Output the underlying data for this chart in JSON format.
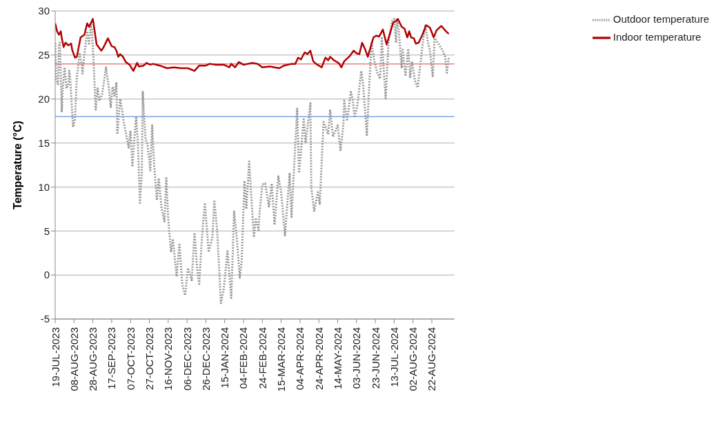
{
  "chart_data": {
    "type": "line",
    "ylabel": "Temperature (°C)",
    "ylim": [
      -5,
      30
    ],
    "yticks": [
      -5,
      0,
      5,
      10,
      15,
      20,
      25,
      30
    ],
    "xlim": [
      "2023-07-19",
      "2024-09-15"
    ],
    "xticks": [
      {
        "value": "2023-07-19",
        "label": "19-JUL-2023"
      },
      {
        "value": "2023-08-08",
        "label": "08-AUG-2023"
      },
      {
        "value": "2023-08-28",
        "label": "28-AUG-2023"
      },
      {
        "value": "2023-09-17",
        "label": "17-SEP-2023"
      },
      {
        "value": "2023-10-07",
        "label": "07-OCT-2023"
      },
      {
        "value": "2023-10-27",
        "label": "27-OCT-2023"
      },
      {
        "value": "2023-11-16",
        "label": "16-NOV-2023"
      },
      {
        "value": "2023-12-06",
        "label": "06-DEC-2023"
      },
      {
        "value": "2023-12-26",
        "label": "26-DEC-2023"
      },
      {
        "value": "2024-01-15",
        "label": "15-JAN-2024"
      },
      {
        "value": "2024-02-04",
        "label": "04-FEB-2024"
      },
      {
        "value": "2024-02-24",
        "label": "24-FEB-2024"
      },
      {
        "value": "2024-03-15",
        "label": "15-MAR-2024"
      },
      {
        "value": "2024-04-04",
        "label": "04-APR-2024"
      },
      {
        "value": "2024-04-24",
        "label": "24-APR-2024"
      },
      {
        "value": "2024-05-14",
        "label": "14-MAY-2024"
      },
      {
        "value": "2024-06-03",
        "label": "03-JUN-2024"
      },
      {
        "value": "2024-06-23",
        "label": "23-JUN-2024"
      },
      {
        "value": "2024-07-13",
        "label": "13-JUL-2024"
      },
      {
        "value": "2024-08-02",
        "label": "02-AUG-2024"
      },
      {
        "value": "2024-08-22",
        "label": "22-AUG-2024"
      }
    ],
    "grid": "y",
    "legend": "top right",
    "ref_lines": [
      {
        "axis": "y",
        "value": 24,
        "color": "#f47c7c"
      },
      {
        "axis": "y",
        "value": 18,
        "color": "#7ea7e6"
      }
    ],
    "series": [
      {
        "name": "Outdoor temperature",
        "color": "#9a9a9a",
        "line_style": "dotted",
        "x": [
          "2023-07-19",
          "2023-07-20",
          "2023-07-22",
          "2023-07-23",
          "2023-07-24",
          "2023-07-26",
          "2023-07-27",
          "2023-07-29",
          "2023-07-31",
          "2023-08-02",
          "2023-08-03",
          "2023-08-04",
          "2023-08-07",
          "2023-08-09",
          "2023-08-11",
          "2023-08-14",
          "2023-08-16",
          "2023-08-17",
          "2023-08-19",
          "2023-08-22",
          "2023-08-24",
          "2023-08-26",
          "2023-08-27",
          "2023-08-29",
          "2023-08-31",
          "2023-09-02",
          "2023-09-04",
          "2023-09-07",
          "2023-09-11",
          "2023-09-14",
          "2023-09-16",
          "2023-09-18",
          "2023-09-20",
          "2023-09-22",
          "2023-09-23",
          "2023-09-26",
          "2023-09-28",
          "2023-09-30",
          "2023-10-02",
          "2023-10-05",
          "2023-10-07",
          "2023-10-09",
          "2023-10-11",
          "2023-10-13",
          "2023-10-15",
          "2023-10-17",
          "2023-10-19",
          "2023-10-20",
          "2023-10-23",
          "2023-10-25",
          "2023-10-28",
          "2023-10-30",
          "2023-11-01",
          "2023-11-04",
          "2023-11-06",
          "2023-11-09",
          "2023-11-12",
          "2023-11-14",
          "2023-11-16",
          "2023-11-19",
          "2023-11-21",
          "2023-11-25",
          "2023-11-28",
          "2023-12-01",
          "2023-12-04",
          "2023-12-07",
          "2023-12-11",
          "2023-12-14",
          "2023-12-17",
          "2023-12-19",
          "2023-12-22",
          "2023-12-25",
          "2023-12-29",
          "2024-01-02",
          "2024-01-04",
          "2024-01-07",
          "2024-01-11",
          "2024-01-14",
          "2024-01-18",
          "2024-01-22",
          "2024-01-25",
          "2024-01-28",
          "2024-01-31",
          "2024-02-02",
          "2024-02-05",
          "2024-02-07",
          "2024-02-10",
          "2024-02-15",
          "2024-02-17",
          "2024-02-20",
          "2024-02-21",
          "2024-02-24",
          "2024-02-27",
          "2024-03-02",
          "2024-03-05",
          "2024-03-08",
          "2024-03-12",
          "2024-03-15",
          "2024-03-19",
          "2024-03-24",
          "2024-03-26",
          "2024-03-29",
          "2024-04-01",
          "2024-04-03",
          "2024-04-08",
          "2024-04-10",
          "2024-04-15",
          "2024-04-16",
          "2024-04-19",
          "2024-04-23",
          "2024-04-25",
          "2024-04-29",
          "2024-05-04",
          "2024-05-06",
          "2024-05-09",
          "2024-05-14",
          "2024-05-17",
          "2024-05-20",
          "2024-05-21",
          "2024-05-24",
          "2024-05-28",
          "2024-05-30",
          "2024-06-01",
          "2024-06-04",
          "2024-06-08",
          "2024-06-10",
          "2024-06-12",
          "2024-06-14",
          "2024-06-16",
          "2024-06-19",
          "2024-06-22",
          "2024-06-25",
          "2024-06-28",
          "2024-06-30",
          "2024-07-02",
          "2024-07-04",
          "2024-07-07",
          "2024-07-11",
          "2024-07-13",
          "2024-07-15",
          "2024-07-16",
          "2024-07-18",
          "2024-07-21",
          "2024-07-22",
          "2024-07-25",
          "2024-07-28",
          "2024-07-30",
          "2024-08-01",
          "2024-08-04",
          "2024-08-07",
          "2024-08-09",
          "2024-08-13",
          "2024-08-15",
          "2024-08-18",
          "2024-08-20",
          "2024-08-23",
          "2024-08-25",
          "2024-08-29",
          "2024-09-02",
          "2024-09-05",
          "2024-09-07",
          "2024-09-09"
        ],
        "values": [
          26.4,
          22.2,
          21.7,
          26.3,
          26.4,
          18.5,
          21.3,
          23.6,
          21.2,
          21.7,
          23.2,
          22.2,
          16.8,
          17.7,
          22.5,
          25.1,
          24.0,
          22.9,
          25.1,
          27.7,
          26.3,
          28.5,
          27.8,
          23.8,
          18.8,
          21.2,
          19.8,
          20.6,
          23.6,
          21.3,
          19.1,
          21.4,
          20.4,
          21.9,
          16.0,
          20.0,
          18.8,
          17.2,
          16.2,
          14.5,
          16.4,
          12.3,
          15.4,
          18.0,
          14.6,
          8.2,
          11.5,
          20.8,
          15.4,
          14.9,
          11.9,
          17.0,
          12.6,
          8.5,
          11.0,
          7.5,
          6.1,
          11.0,
          6.5,
          2.6,
          4.1,
          -0.2,
          3.6,
          -1.1,
          -2.3,
          0.8,
          -0.6,
          4.8,
          0.5,
          -1.0,
          4.5,
          8.2,
          2.6,
          4.3,
          8.5,
          5.1,
          -3.2,
          -1.6,
          2.7,
          -2.6,
          7.2,
          4.1,
          -0.3,
          1.5,
          10.7,
          7.5,
          12.9,
          4.3,
          6.5,
          5.1,
          7.0,
          10.3,
          10.4,
          7.8,
          10.4,
          5.7,
          11.2,
          9.4,
          4.5,
          11.5,
          6.6,
          12.8,
          18.9,
          11.6,
          17.7,
          15.0,
          19.5,
          9.9,
          7.3,
          9.4,
          8.1,
          17.4,
          16.0,
          18.8,
          15.7,
          17.0,
          14.2,
          17.0,
          19.8,
          17.5,
          20.8,
          20.0,
          17.9,
          19.3,
          23.2,
          21.7,
          18.8,
          15.8,
          20.4,
          26.5,
          24.3,
          23.0,
          22.3,
          26.9,
          23.2,
          20.1,
          26.4,
          28.9,
          29.1,
          26.4,
          29.1,
          27.7,
          23.5,
          25.6,
          22.6,
          25.7,
          22.5,
          24.3,
          22.1,
          21.3,
          23.2,
          26.9,
          28.4,
          26.4,
          25.5,
          22.5,
          26.9,
          26.3,
          25.6,
          24.9,
          23.0,
          24.7
        ]
      },
      {
        "name": "Indoor temperature",
        "color": "#b00000",
        "line_style": "solid",
        "x": [
          "2023-07-19",
          "2023-07-21",
          "2023-07-23",
          "2023-07-25",
          "2023-07-26",
          "2023-07-28",
          "2023-07-30",
          "2023-08-02",
          "2023-08-05",
          "2023-08-06",
          "2023-08-09",
          "2023-08-11",
          "2023-08-15",
          "2023-08-19",
          "2023-08-22",
          "2023-08-24",
          "2023-08-28",
          "2023-09-01",
          "2023-09-06",
          "2023-09-08",
          "2023-09-13",
          "2023-09-17",
          "2023-09-20",
          "2023-09-22",
          "2023-09-24",
          "2023-09-26",
          "2023-09-29",
          "2023-10-02",
          "2023-10-06",
          "2023-10-10",
          "2023-10-14",
          "2023-10-16",
          "2023-10-21",
          "2023-10-24",
          "2023-10-28",
          "2023-10-31",
          "2023-11-07",
          "2023-11-15",
          "2023-11-22",
          "2023-11-30",
          "2023-12-07",
          "2023-12-14",
          "2023-12-19",
          "2023-12-26",
          "2023-12-30",
          "2024-01-06",
          "2024-01-14",
          "2024-01-20",
          "2024-01-22",
          "2024-01-26",
          "2024-01-30",
          "2024-02-04",
          "2024-02-13",
          "2024-02-19",
          "2024-02-24",
          "2024-03-03",
          "2024-03-13",
          "2024-03-18",
          "2024-03-26",
          "2024-03-30",
          "2024-04-02",
          "2024-04-05",
          "2024-04-09",
          "2024-04-12",
          "2024-04-15",
          "2024-04-18",
          "2024-04-21",
          "2024-04-27",
          "2024-05-01",
          "2024-05-04",
          "2024-05-06",
          "2024-05-10",
          "2024-05-15",
          "2024-05-18",
          "2024-05-21",
          "2024-05-25",
          "2024-05-27",
          "2024-05-31",
          "2024-06-03",
          "2024-06-06",
          "2024-06-09",
          "2024-06-12",
          "2024-06-15",
          "2024-06-21",
          "2024-06-24",
          "2024-06-27",
          "2024-07-01",
          "2024-07-05",
          "2024-07-12",
          "2024-07-14",
          "2024-07-17",
          "2024-07-21",
          "2024-07-24",
          "2024-07-27",
          "2024-07-29",
          "2024-07-31",
          "2024-08-03",
          "2024-08-05",
          "2024-08-08",
          "2024-08-12",
          "2024-08-16",
          "2024-08-20",
          "2024-08-24",
          "2024-08-27",
          "2024-09-01",
          "2024-09-02",
          "2024-09-06",
          "2024-09-09"
        ],
        "values": [
          28.6,
          27.7,
          27.3,
          27.7,
          26.9,
          25.9,
          26.4,
          26.1,
          26.3,
          25.6,
          24.7,
          24.8,
          27.0,
          27.3,
          28.6,
          28.2,
          29.1,
          26.2,
          25.5,
          25.8,
          26.9,
          26.0,
          25.9,
          25.5,
          24.8,
          25.1,
          24.8,
          24.2,
          23.9,
          23.2,
          24.1,
          23.7,
          23.8,
          24.1,
          23.9,
          24.0,
          23.8,
          23.5,
          23.6,
          23.5,
          23.5,
          23.2,
          23.8,
          23.8,
          24.0,
          23.9,
          23.9,
          23.6,
          24.0,
          23.6,
          24.2,
          23.9,
          24.1,
          24.0,
          23.6,
          23.7,
          23.5,
          23.8,
          24.0,
          24.0,
          24.7,
          24.5,
          25.3,
          25.1,
          25.5,
          24.3,
          24.0,
          23.6,
          24.7,
          24.4,
          24.8,
          24.4,
          24.1,
          23.6,
          24.3,
          24.7,
          24.9,
          25.5,
          25.2,
          25.1,
          26.4,
          25.7,
          24.8,
          27.0,
          27.2,
          27.1,
          27.9,
          26.2,
          28.7,
          28.8,
          29.1,
          28.2,
          28.0,
          27.0,
          27.7,
          27.0,
          26.9,
          26.3,
          26.4,
          27.3,
          28.4,
          28.1,
          27.0,
          27.8,
          28.3,
          28.2,
          27.7,
          27.4
        ]
      }
    ]
  }
}
